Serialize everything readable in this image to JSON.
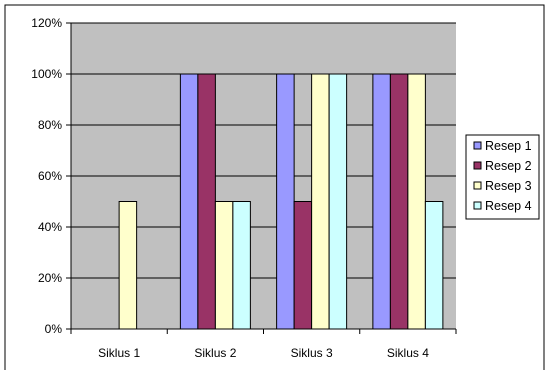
{
  "colors": {
    "plot_background": "#c0c0c0",
    "gridline": "#000000",
    "series": [
      "#9999ff",
      "#993366",
      "#ffffcc",
      "#ccffff"
    ]
  },
  "chart_data": {
    "type": "bar",
    "categories": [
      "Siklus 1",
      "Siklus 2",
      "Siklus 3",
      "Siklus 4"
    ],
    "series": [
      {
        "name": "Resep 1",
        "values": [
          0,
          100,
          100,
          100
        ]
      },
      {
        "name": "Resep 2",
        "values": [
          0,
          100,
          50,
          100
        ]
      },
      {
        "name": "Resep 3",
        "values": [
          50,
          50,
          100,
          100
        ]
      },
      {
        "name": "Resep 4",
        "values": [
          0,
          50,
          100,
          50
        ]
      }
    ],
    "ylim": [
      0,
      120
    ],
    "yticks": [
      0,
      20,
      40,
      60,
      80,
      100,
      120
    ],
    "ytick_labels": [
      "0%",
      "20%",
      "40%",
      "60%",
      "80%",
      "100%",
      "120%"
    ],
    "grid": true,
    "legend_position": "right",
    "title": "",
    "xlabel": "",
    "ylabel": ""
  }
}
